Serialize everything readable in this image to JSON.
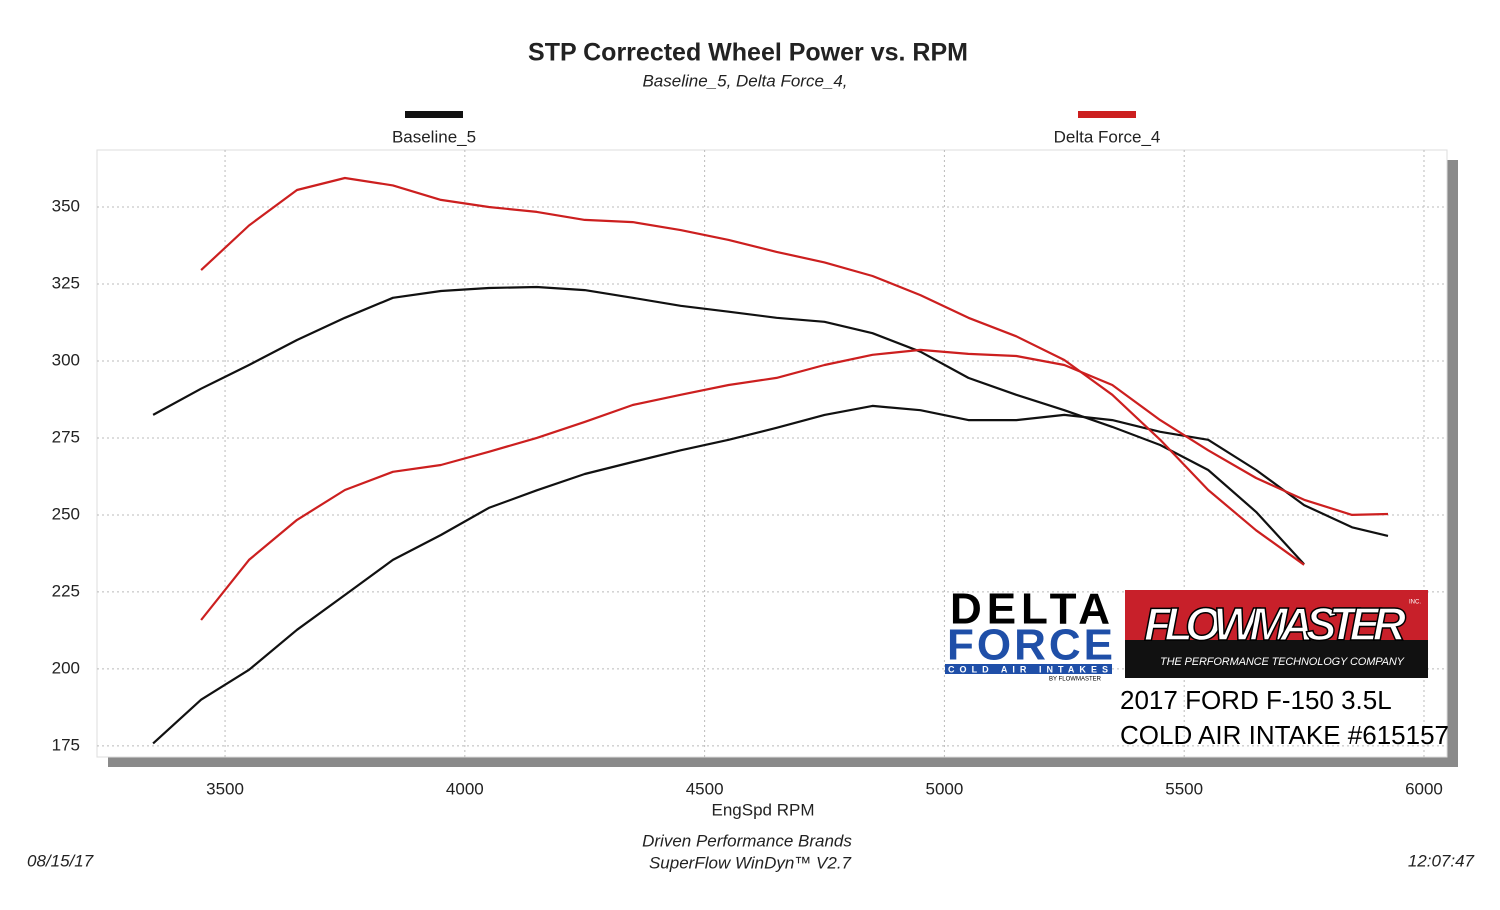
{
  "chart_data": {
    "type": "line",
    "title": "STP Corrected Wheel Power vs. RPM",
    "subtitle": "Baseline_5, Delta Force_4,",
    "x_label": "EngSpd  RPM",
    "x": [
      3350,
      3450,
      3550,
      3650,
      3750,
      3850,
      3950,
      4050,
      4150,
      4250,
      4350,
      4450,
      4550,
      4650,
      4750,
      4850,
      4950,
      5050,
      5150,
      5250,
      5350,
      5450,
      5550,
      5650,
      5750,
      5850,
      5925
    ],
    "series": [
      {
        "name": "Baseline_5",
        "color": "#111111",
        "curves": [
          [
            282.5,
            291,
            298.7,
            306.8,
            314,
            320.5,
            322.7,
            323.7,
            324,
            323,
            320.5,
            317.9,
            316,
            314,
            312.7,
            309,
            303,
            294.5,
            289,
            284,
            278.6,
            272.7,
            264.6,
            251,
            234,
            null,
            null
          ],
          [
            175.8,
            190,
            199.7,
            212.7,
            224,
            235.4,
            243.5,
            252.3,
            258,
            263.3,
            267.2,
            271,
            274.4,
            278.3,
            282.5,
            285.4,
            284,
            280.8,
            280.8,
            282.5,
            280.8,
            277,
            274.4,
            264.6,
            253.2,
            246,
            243.2
          ]
        ]
      },
      {
        "name": "Delta Force_4",
        "color": "#cc1f1f",
        "curves": [
          [
            null,
            329.5,
            344,
            355.5,
            359.4,
            357,
            352.3,
            350,
            348.4,
            345.8,
            345.1,
            342.5,
            339.3,
            335.4,
            332,
            327.6,
            321.4,
            314,
            308,
            300.3,
            289,
            274.4,
            258.1,
            245,
            233.8,
            null,
            null
          ],
          [
            null,
            215.9,
            235.4,
            248.4,
            258.1,
            264,
            266.2,
            270.5,
            275,
            280.2,
            285.7,
            289,
            292.2,
            294.5,
            298.7,
            302,
            303.6,
            302.3,
            301.6,
            298.7,
            292.2,
            280.8,
            271,
            262,
            254.9,
            250,
            250.3
          ]
        ]
      }
    ],
    "xlim": [
      3233,
      6048
    ],
    "ylim": [
      171.4,
      368.5
    ],
    "xticks": [
      3500,
      4000,
      4500,
      5000,
      5500,
      6000
    ],
    "yticks": [
      175,
      200,
      225,
      250,
      275,
      300,
      325,
      350
    ],
    "grid": true,
    "footer": [
      "Driven Performance Brands",
      "SuperFlow WinDyn™  V2.7"
    ],
    "date": "08/15/17",
    "time": "12:07:47",
    "logos": {
      "delta_force": [
        "DELTA",
        "FORCE",
        "COLD AIR INTAKES",
        "BY FLOWMASTER"
      ],
      "flowmaster": [
        "FLOWMASTER",
        "INC.",
        "THE PERFORMANCE TECHNOLOGY COMPANY"
      ]
    },
    "caption": [
      "2017 FORD F-150 3.5L",
      "COLD AIR INTAKE #615157"
    ]
  }
}
